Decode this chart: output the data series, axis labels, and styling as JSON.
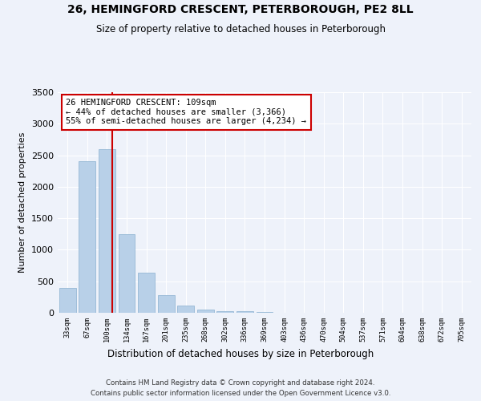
{
  "title1": "26, HEMINGFORD CRESCENT, PETERBOROUGH, PE2 8LL",
  "title2": "Size of property relative to detached houses in Peterborough",
  "xlabel": "Distribution of detached houses by size in Peterborough",
  "ylabel": "Number of detached properties",
  "categories": [
    "33sqm",
    "67sqm",
    "100sqm",
    "134sqm",
    "167sqm",
    "201sqm",
    "235sqm",
    "268sqm",
    "302sqm",
    "336sqm",
    "369sqm",
    "403sqm",
    "436sqm",
    "470sqm",
    "504sqm",
    "537sqm",
    "571sqm",
    "604sqm",
    "638sqm",
    "672sqm",
    "705sqm"
  ],
  "values": [
    400,
    2400,
    2600,
    1250,
    640,
    275,
    110,
    55,
    30,
    20,
    10,
    0,
    0,
    0,
    0,
    0,
    0,
    0,
    0,
    0,
    0
  ],
  "bar_color": "#b8d0e8",
  "bar_edge_color": "#8ab0d0",
  "vline_x": 2.27,
  "vline_color": "#cc0000",
  "annotation_text": "26 HEMINGFORD CRESCENT: 109sqm\n← 44% of detached houses are smaller (3,366)\n55% of semi-detached houses are larger (4,234) →",
  "annotation_box_color": "#ffffff",
  "annotation_border_color": "#cc0000",
  "background_color": "#eef2fa",
  "plot_background": "#eef2fa",
  "grid_color": "#ffffff",
  "footer": "Contains HM Land Registry data © Crown copyright and database right 2024.\nContains public sector information licensed under the Open Government Licence v3.0.",
  "ylim": [
    0,
    3500
  ],
  "yticks": [
    0,
    500,
    1000,
    1500,
    2000,
    2500,
    3000,
    3500
  ],
  "figwidth": 6.0,
  "figheight": 5.0
}
